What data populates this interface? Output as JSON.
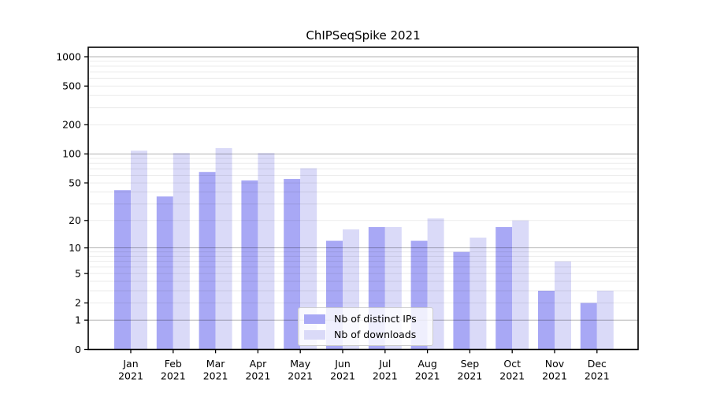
{
  "chart_data": {
    "type": "bar",
    "title": "ChIPSeqSpike 2021",
    "categories": [
      "Jan",
      "Feb",
      "Mar",
      "Apr",
      "May",
      "Jun",
      "Jul",
      "Aug",
      "Sep",
      "Oct",
      "Nov",
      "Dec"
    ],
    "x_year_label": "2021",
    "series": [
      {
        "name": "Nb of distinct IPs",
        "color": "#a8a8f5",
        "values": [
          42,
          36,
          65,
          53,
          55,
          12,
          17,
          12,
          9,
          17,
          3,
          2
        ]
      },
      {
        "name": "Nb of downloads",
        "color": "#dadaf8",
        "values": [
          108,
          102,
          115,
          102,
          71,
          16,
          17,
          21,
          13,
          20,
          7,
          3
        ]
      }
    ],
    "yscale": "log10(1+y)",
    "yticks": [
      0,
      1,
      2,
      5,
      10,
      20,
      50,
      100,
      200,
      500,
      1000
    ],
    "ylim": [
      0,
      1250
    ],
    "grid": {
      "major_at": [
        1,
        10,
        100,
        1000
      ],
      "minor_at": "2-9 of each decade",
      "on_top_of_bars": true
    },
    "legend_position": "lower center inside plot",
    "colors": {
      "axis": "#000000",
      "grid_major": "rgba(0,0,0,0.30)",
      "grid_minor": "rgba(0,0,0,0.08)",
      "legend_border": "#cccccc"
    }
  }
}
